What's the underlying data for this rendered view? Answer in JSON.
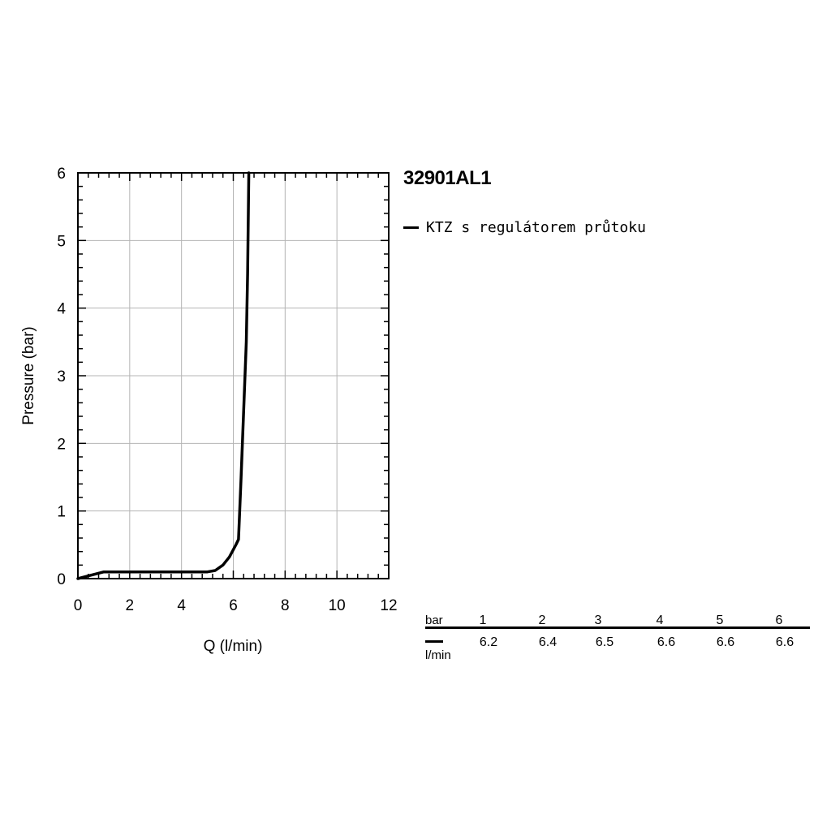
{
  "product_code": "32901AL1",
  "legend": {
    "label": "KTZ s regulátorem průtoku",
    "color": "#000000"
  },
  "flow_table": {
    "row1_unit": "bar",
    "row2_unit": "l/min",
    "pressures": [
      "1",
      "2",
      "3",
      "4",
      "5",
      "6"
    ],
    "flows": [
      "6.2",
      "6.4",
      "6.5",
      "6.6",
      "6.6",
      "6.6"
    ]
  },
  "chart_data": {
    "type": "line",
    "xlabel": "Q (l/min)",
    "ylabel": "Pressure (bar)",
    "xlim": [
      0,
      12
    ],
    "ylim": [
      0,
      6
    ],
    "x_ticks": [
      "0",
      "2",
      "4",
      "6",
      "8",
      "10",
      "12"
    ],
    "y_ticks": [
      "0",
      "1",
      "2",
      "3",
      "4",
      "5",
      "6"
    ],
    "grid": true,
    "series": [
      {
        "name": "KTZ s regulátorem průtoku",
        "color": "#000000",
        "points": [
          [
            0,
            0
          ],
          [
            0.5,
            0.05
          ],
          [
            1.0,
            0.1
          ],
          [
            2.0,
            0.1
          ],
          [
            3.0,
            0.1
          ],
          [
            4.0,
            0.1
          ],
          [
            5.0,
            0.1
          ],
          [
            5.3,
            0.12
          ],
          [
            5.6,
            0.2
          ],
          [
            5.85,
            0.32
          ],
          [
            6.1,
            0.5
          ],
          [
            6.2,
            0.58
          ],
          [
            6.3,
            1.5
          ],
          [
            6.4,
            2.5
          ],
          [
            6.5,
            3.5
          ],
          [
            6.55,
            4.5
          ],
          [
            6.6,
            6.0
          ]
        ]
      }
    ]
  }
}
